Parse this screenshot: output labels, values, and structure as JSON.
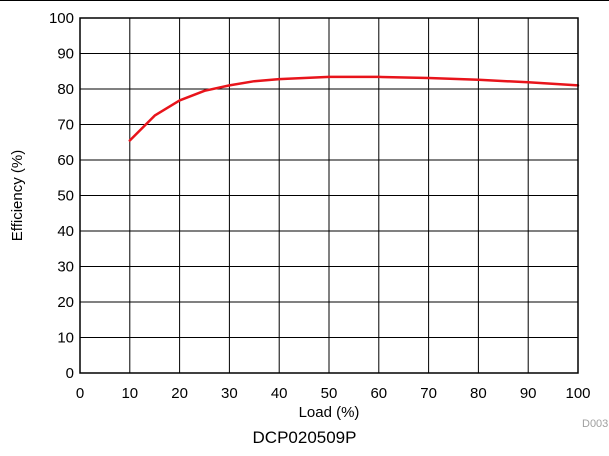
{
  "chart_data": {
    "type": "line",
    "xlabel": "Load (%)",
    "ylabel": "Efficiency (%)",
    "xlim": [
      0,
      100
    ],
    "ylim": [
      0,
      100
    ],
    "xticks": [
      0,
      10,
      20,
      30,
      40,
      50,
      60,
      70,
      80,
      90,
      100
    ],
    "yticks": [
      0,
      10,
      20,
      30,
      40,
      50,
      60,
      70,
      80,
      90,
      100
    ],
    "grid": true,
    "series": [
      {
        "color": "#e8141b",
        "x": [
          10,
          15,
          20,
          25,
          30,
          35,
          40,
          45,
          50,
          55,
          60,
          70,
          80,
          90,
          100
        ],
        "y": [
          65.5,
          72.5,
          76.8,
          79.5,
          81.0,
          82.2,
          82.8,
          83.1,
          83.4,
          83.4,
          83.4,
          83.1,
          82.6,
          81.9,
          81.0
        ]
      }
    ]
  },
  "caption": "DCP020509P",
  "figure_id": "D003"
}
